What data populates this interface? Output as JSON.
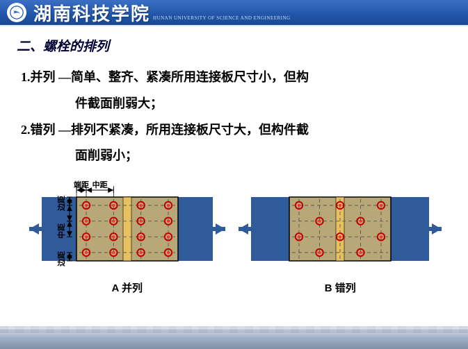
{
  "header": {
    "title": "湖南科技学院",
    "subtitle": "HUNAN UNIVERSITY OF SCIENCE AND ENGINEERING"
  },
  "section_title": "二、螺栓的排列",
  "items": [
    {
      "num": "1.",
      "lead": "并列",
      "body1": "—简单、整齐、紧凑所用连接板尺寸小，但构",
      "body2": "件截面削弱大；"
    },
    {
      "num": "2.",
      "lead": "错列",
      "body1": "—排列不紧凑，所用连接板尺寸大，但构件截",
      "body2": "面削弱小；"
    }
  ],
  "labels": {
    "edge_dist": "端距",
    "mid_dist": "中距",
    "v_edge": "边距",
    "v_mid": "中距"
  },
  "figA": {
    "caption": "A 并列",
    "colors": {
      "plate": "#2f5b9b",
      "splice": "#b8a878",
      "strip": "#e8c060",
      "bolt_fill": "#ff3030",
      "bolt_ring": "#c00000",
      "grid": "#555"
    },
    "rows": 4,
    "cols": 4,
    "stagger": false
  },
  "figB": {
    "caption": "B 错列",
    "colors": {
      "plate": "#2f5b9b",
      "splice": "#b8a878",
      "strip": "#e8c060",
      "bolt_fill": "#ff3030",
      "bolt_ring": "#c00000",
      "grid": "#555"
    },
    "rows": 4,
    "cols": 5,
    "stagger": true
  }
}
